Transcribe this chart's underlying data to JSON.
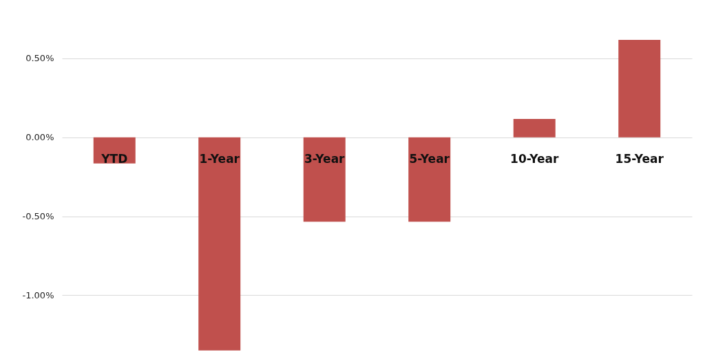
{
  "chart_data": {
    "type": "bar",
    "categories": [
      "YTD",
      "1-Year",
      "3-Year",
      "5-Year",
      "10-Year",
      "15-Year"
    ],
    "values": [
      -0.165,
      -1.35,
      -0.535,
      -0.535,
      0.117,
      0.617
    ],
    "color": "#c0504d",
    "ylim": [
      -1.36,
      0.87
    ],
    "yticks": [
      {
        "value": -1.0,
        "label": "-1.00%"
      },
      {
        "value": -0.5,
        "label": "-0.50%"
      },
      {
        "value": 0,
        "label": "0.00%"
      },
      {
        "value": 0.5,
        "label": "0.50%"
      }
    ],
    "grid": "y"
  }
}
